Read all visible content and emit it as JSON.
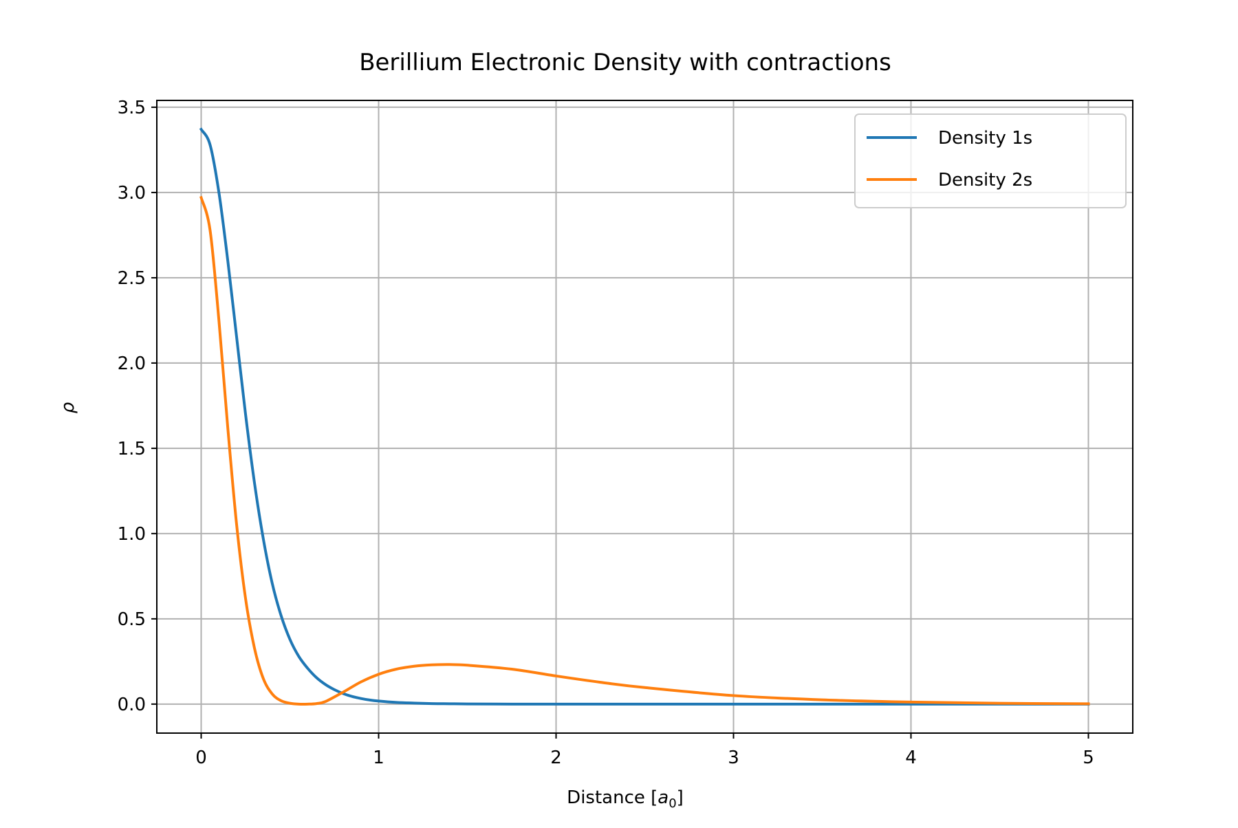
{
  "chart_data": {
    "type": "line",
    "title": "Berillium Electronic Density with contractions",
    "xlabel": "Distance",
    "xlabel_unit_symbol": "a",
    "xlabel_unit_subscript": "0",
    "ylabel": "ρ",
    "xlim": [
      -0.25,
      5.25
    ],
    "ylim": [
      -0.17,
      3.54
    ],
    "xticks": [
      0,
      1,
      2,
      3,
      4,
      5
    ],
    "xtick_labels": [
      "0",
      "1",
      "2",
      "3",
      "4",
      "5"
    ],
    "yticks": [
      0.0,
      0.5,
      1.0,
      1.5,
      2.0,
      2.5,
      3.0,
      3.5
    ],
    "ytick_labels": [
      "0.0",
      "0.5",
      "1.0",
      "1.5",
      "2.0",
      "2.5",
      "3.0",
      "3.5"
    ],
    "grid": true,
    "legend_position": "upper right",
    "series": [
      {
        "name": "Density 1s",
        "color": "#1f77b4",
        "x": [
          0,
          0.05,
          0.1,
          0.15,
          0.2,
          0.25,
          0.3,
          0.35,
          0.4,
          0.45,
          0.5,
          0.55,
          0.6,
          0.65,
          0.7,
          0.75,
          0.8,
          0.85,
          0.9,
          0.95,
          1.0,
          1.1,
          1.2,
          1.3,
          1.4,
          1.5,
          1.75,
          2.0,
          2.5,
          3.0,
          3.5,
          4.0,
          4.5,
          5.0
        ],
        "y": [
          3.37,
          3.28,
          3.0,
          2.6,
          2.15,
          1.7,
          1.3,
          0.97,
          0.71,
          0.52,
          0.38,
          0.28,
          0.21,
          0.155,
          0.115,
          0.085,
          0.062,
          0.045,
          0.033,
          0.024,
          0.018,
          0.01,
          0.006,
          0.003,
          0.002,
          0.001,
          0.0,
          0.0,
          0.0,
          0.0,
          0.0,
          0.0,
          0.0,
          0.0
        ]
      },
      {
        "name": "Density 2s",
        "color": "#ff7f0e",
        "x": [
          0,
          0.05,
          0.1,
          0.15,
          0.2,
          0.25,
          0.3,
          0.35,
          0.4,
          0.45,
          0.5,
          0.55,
          0.6,
          0.65,
          0.7,
          0.8,
          0.9,
          1.0,
          1.1,
          1.2,
          1.3,
          1.4,
          1.5,
          1.75,
          2.0,
          2.25,
          2.5,
          3.0,
          3.5,
          4.0,
          4.5,
          5.0
        ],
        "y": [
          2.97,
          2.78,
          2.25,
          1.62,
          1.05,
          0.62,
          0.33,
          0.15,
          0.06,
          0.02,
          0.005,
          0.0,
          0.0,
          0.003,
          0.015,
          0.07,
          0.13,
          0.175,
          0.205,
          0.222,
          0.23,
          0.232,
          0.228,
          0.205,
          0.165,
          0.128,
          0.097,
          0.05,
          0.025,
          0.012,
          0.005,
          0.002
        ]
      }
    ]
  }
}
